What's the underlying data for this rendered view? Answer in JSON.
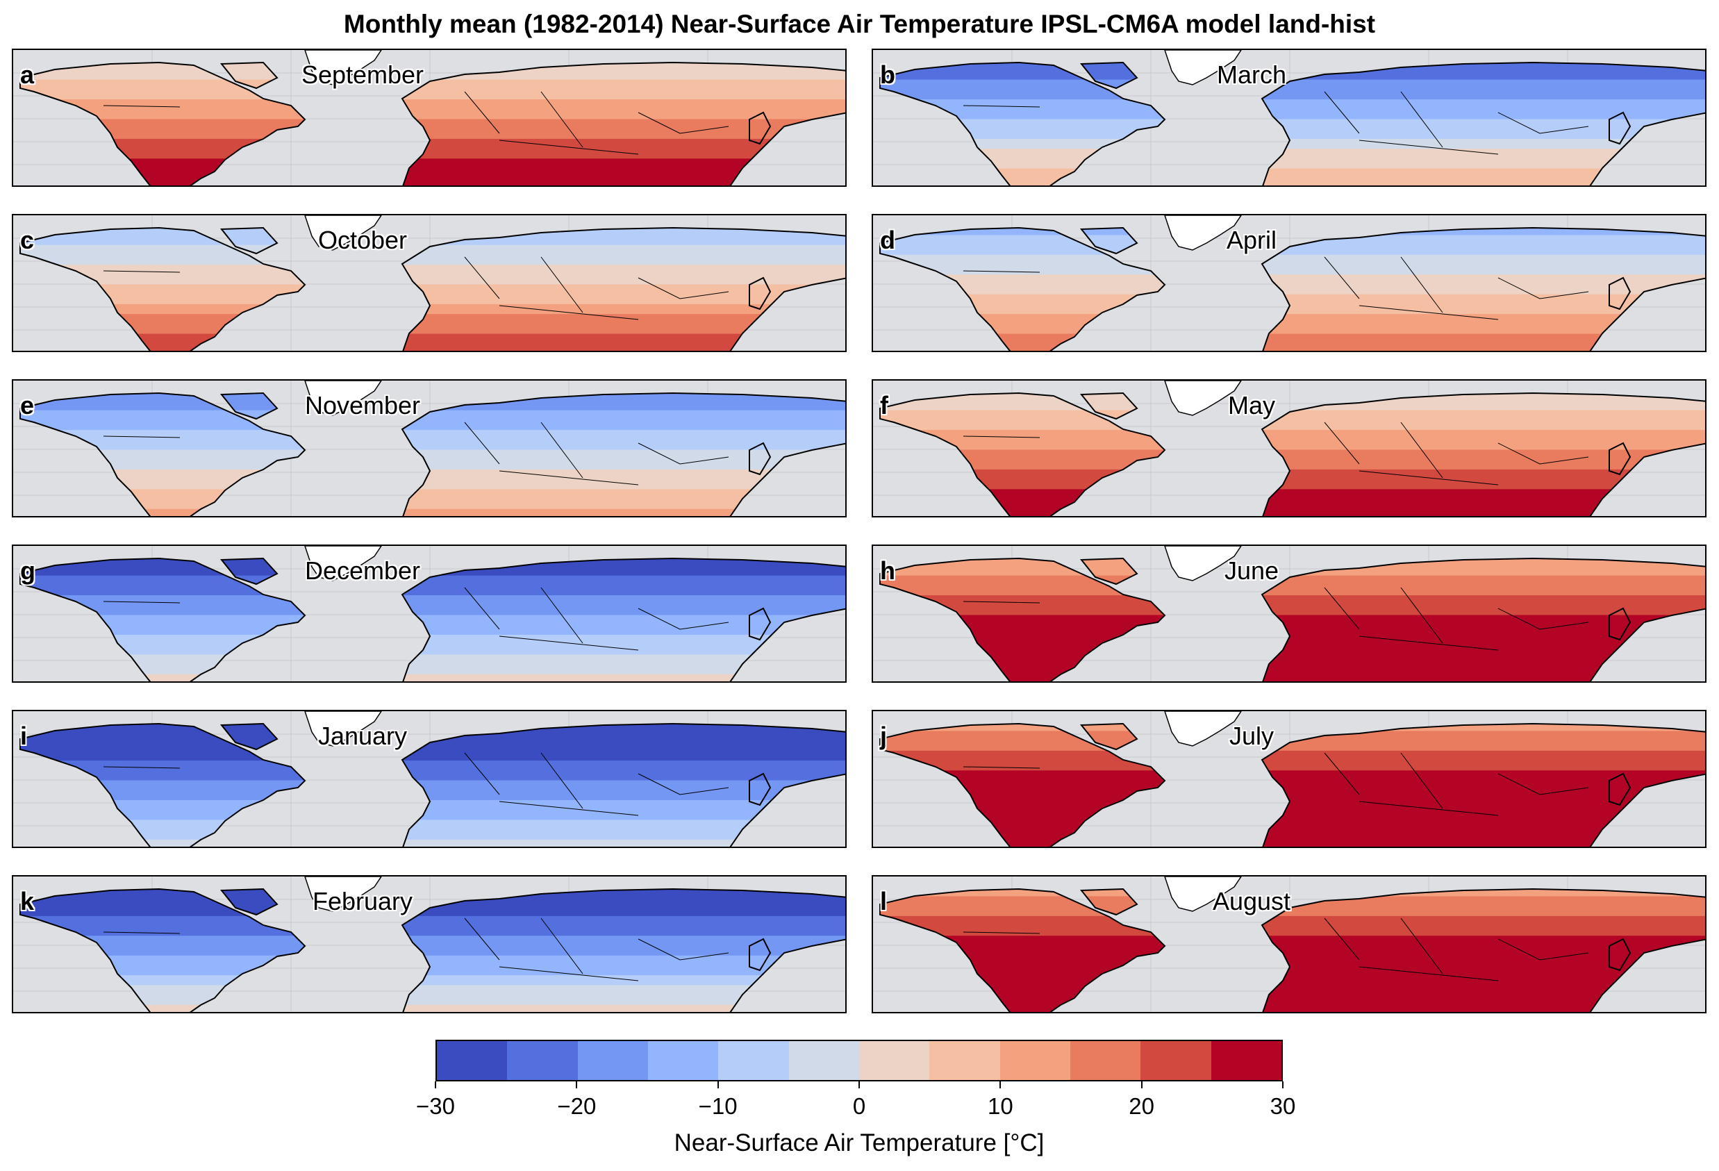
{
  "figure": {
    "title": "Monthly mean (1982-2014) Near-Surface Air Temperature IPSL-CM6A model land-hist"
  },
  "panels": [
    {
      "letter": "a",
      "month": "September",
      "level": 0.45
    },
    {
      "letter": "b",
      "month": "March",
      "level": -0.35
    },
    {
      "letter": "c",
      "month": "October",
      "level": 0.15
    },
    {
      "letter": "d",
      "month": "April",
      "level": 0.05
    },
    {
      "letter": "e",
      "month": "November",
      "level": -0.25
    },
    {
      "letter": "f",
      "month": "May",
      "level": 0.45
    },
    {
      "letter": "g",
      "month": "December",
      "level": -0.55
    },
    {
      "letter": "h",
      "month": "June",
      "level": 0.75
    },
    {
      "letter": "i",
      "month": "January",
      "level": -0.7
    },
    {
      "letter": "j",
      "month": "July",
      "level": 0.9
    },
    {
      "letter": "k",
      "month": "February",
      "level": -0.6
    },
    {
      "letter": "l",
      "month": "August",
      "level": 0.85
    }
  ],
  "colorbar": {
    "label": "Near-Surface Air Temperature [°C]",
    "min": -30,
    "max": 30,
    "step": 5,
    "ticks": [
      "−30",
      "−20",
      "−10",
      "0",
      "10",
      "20",
      "30"
    ],
    "colors": [
      "#3b4cc0",
      "#5470de",
      "#7497f4",
      "#93b5fe",
      "#b5cdf9",
      "#d0dae9",
      "#ecd3c5",
      "#f5bfa3",
      "#f4a17f",
      "#e97b5f",
      "#d1493f",
      "#b40426"
    ]
  },
  "map": {
    "ocean_color": "#dedfe3",
    "ice_color": "#ffffff",
    "coast_color": "#000000"
  }
}
